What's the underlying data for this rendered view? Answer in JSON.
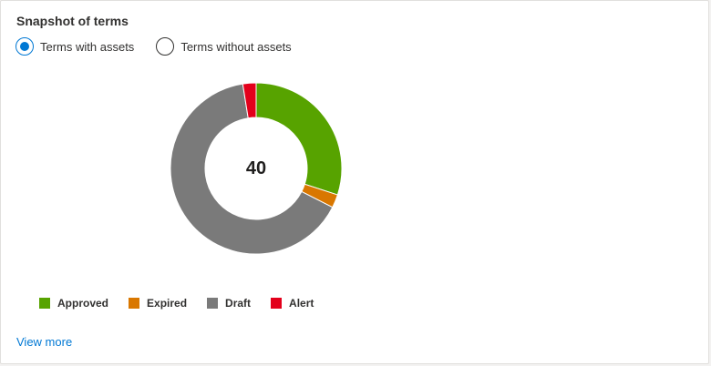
{
  "card": {
    "title": "Snapshot of terms",
    "view_more": "View more"
  },
  "filter": {
    "options": [
      {
        "label": "Terms with assets",
        "selected": true
      },
      {
        "label": "Terms without assets",
        "selected": false
      }
    ]
  },
  "chart_data": {
    "type": "pie",
    "center_label": "40",
    "categories": [
      "Approved",
      "Expired",
      "Draft",
      "Alert"
    ],
    "values": [
      12,
      1,
      26,
      1
    ],
    "colors": [
      "#57a300",
      "#d97700",
      "#7a7a7a",
      "#e3001b"
    ],
    "legend_position": "bottom-left"
  }
}
